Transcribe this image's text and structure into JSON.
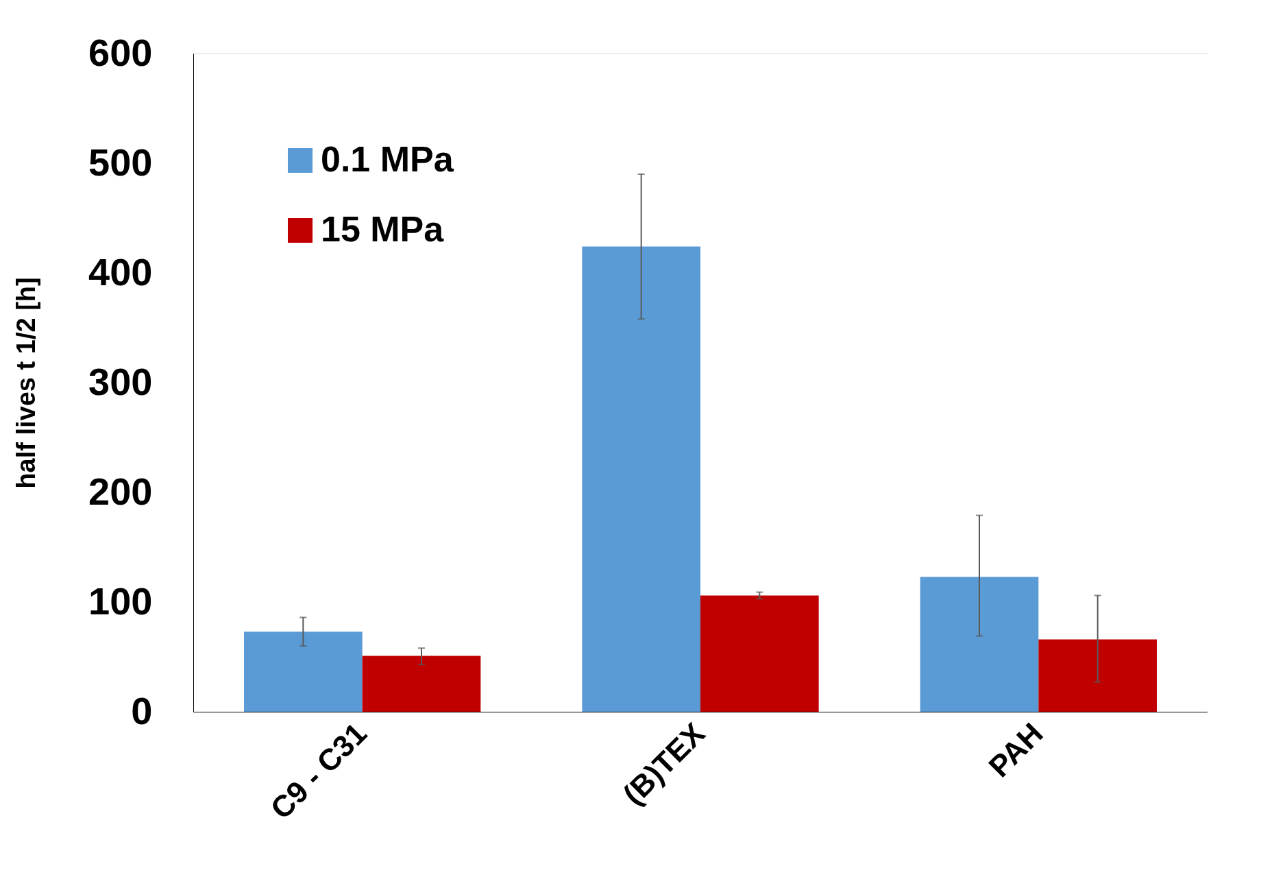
{
  "chart_data": {
    "type": "bar",
    "ylabel": "half lives  t 1/2 [h]",
    "categories": [
      "C9 - C31",
      "(B)TEX",
      "PAH"
    ],
    "series": [
      {
        "name": "0.1 MPa",
        "color": "#5b9bd5",
        "values": [
          73,
          424,
          123
        ],
        "errors": [
          [
            60,
            86
          ],
          [
            358,
            490
          ],
          [
            69,
            179
          ]
        ]
      },
      {
        "name": "15 MPa",
        "color": "#c00000",
        "values": [
          51,
          106,
          66
        ],
        "errors": [
          [
            43,
            58
          ],
          [
            103,
            109
          ],
          [
            27,
            106
          ]
        ]
      }
    ],
    "ylim": [
      0,
      600
    ],
    "yticks": [
      0,
      100,
      200,
      300,
      400,
      500,
      600
    ],
    "grid": false,
    "legend": "top left"
  }
}
